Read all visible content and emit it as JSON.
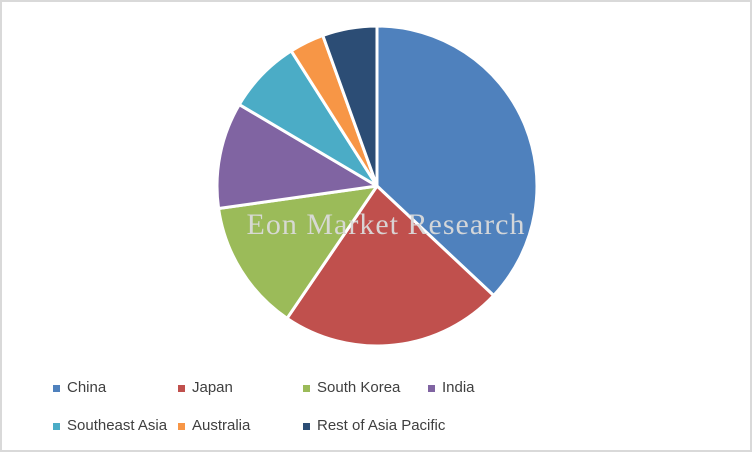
{
  "watermark": "Eon Market Research",
  "chart_data": {
    "type": "pie",
    "title": "",
    "categories": [
      "China",
      "Japan",
      "South Korea",
      "India",
      "Southeast Asia",
      "Australia",
      "Rest of Asia Pacific"
    ],
    "values": [
      37,
      22.5,
      13.25,
      10.75,
      7.5,
      3.5,
      5.5
    ],
    "values_note": "percent share estimated from slice angles; no data labels shown in chart",
    "colors": [
      "#4F81BD",
      "#C0504D",
      "#9BBB59",
      "#8064A2",
      "#4BACC6",
      "#F79646",
      "#2C4D75"
    ],
    "start_angle_deg": 0,
    "direction": "clockwise",
    "slice_border_color": "#FFFFFF",
    "legend_position": "bottom",
    "legend_text_color": "#3F3F3F",
    "watermark_text": "Eon Market Research"
  }
}
